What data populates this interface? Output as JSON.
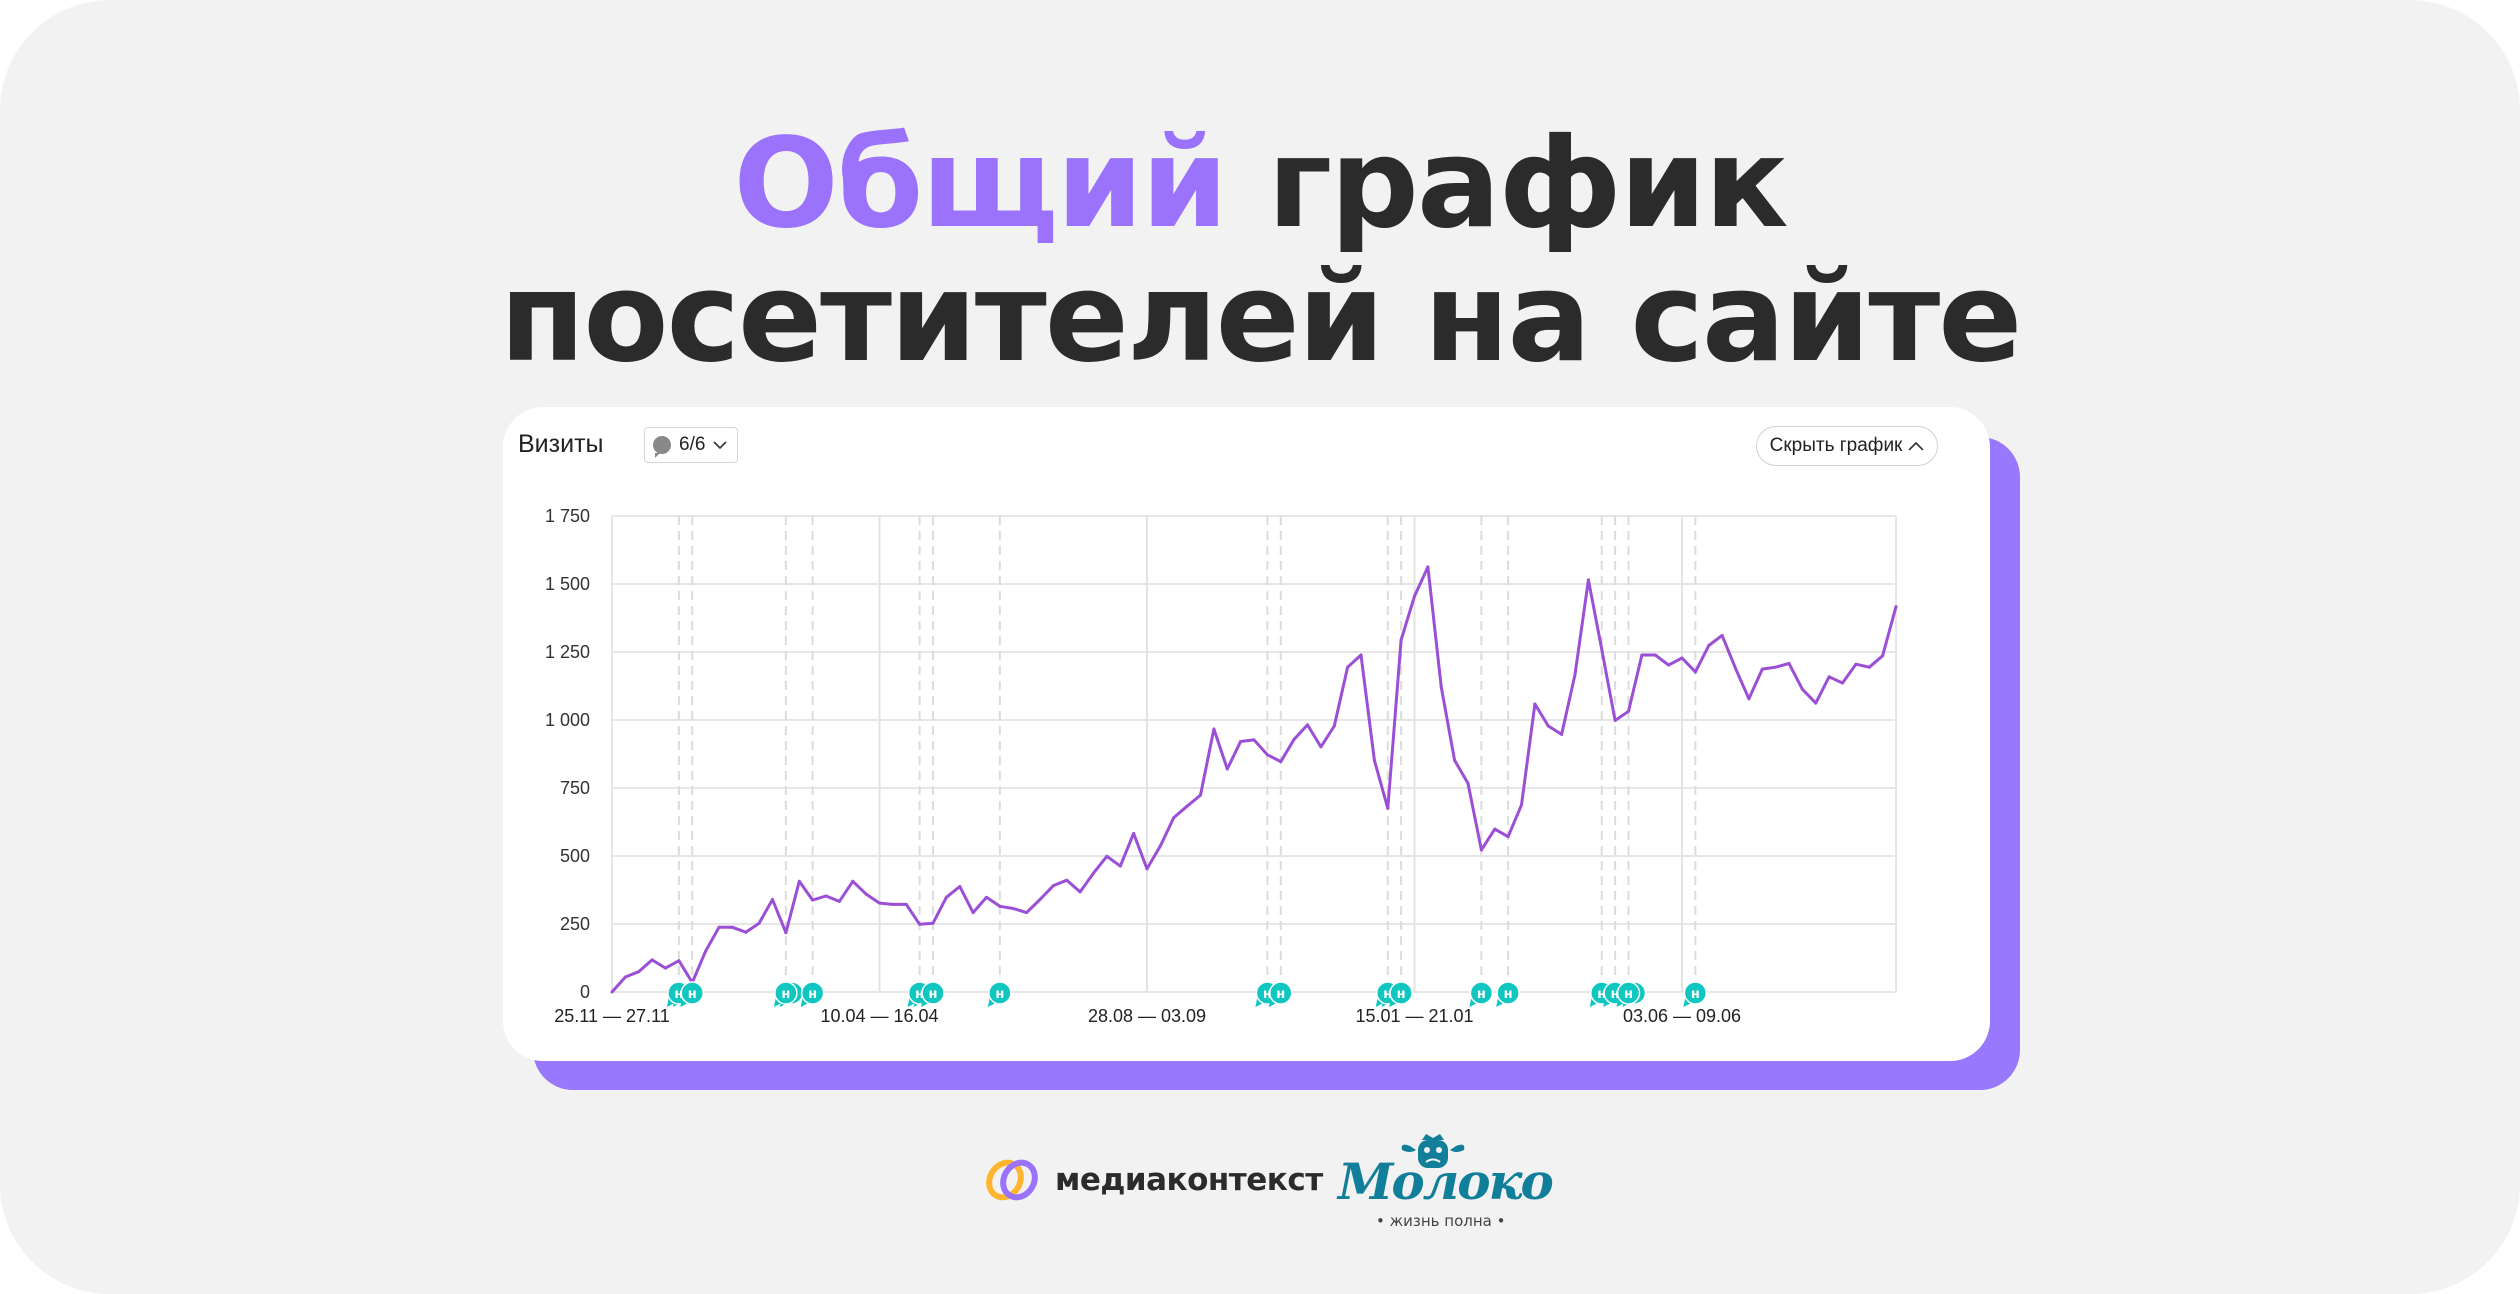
{
  "title": {
    "accent": "Общий",
    "line1_rest": " график",
    "line2": "посетителей на сайте"
  },
  "colors": {
    "accent": "#9a72fb",
    "line": "#9b4fd6",
    "annotation": "#0fc6c0",
    "shadow_card": "#9a78fd"
  },
  "widget": {
    "metric_label": "Визиты",
    "annotations_filter": "6/6",
    "annotations_icon": "speech-bubble-icon",
    "hide_button": "Скрыть график",
    "hide_icon": "chevron-up-icon"
  },
  "chart_data": {
    "type": "line",
    "title": "",
    "xlabel": "",
    "ylabel": "",
    "ylim": [
      0,
      1750
    ],
    "yticks": [
      "0",
      "250",
      "500",
      "750",
      "1 000",
      "1 250",
      "1 500",
      "1 750"
    ],
    "ytick_values": [
      0,
      250,
      500,
      750,
      1000,
      1250,
      1500,
      1750
    ],
    "xtick_labels": [
      {
        "index": 0,
        "label": "25.11 — 27.11"
      },
      {
        "index": 20,
        "label": "10.04 — 16.04"
      },
      {
        "index": 40,
        "label": "28.08 — 03.09"
      },
      {
        "index": 60,
        "label": "15.01 — 21.01"
      },
      {
        "index": 80,
        "label": "03.06 — 09.06"
      }
    ],
    "grid": true,
    "values": [
      0,
      55,
      75,
      118,
      88,
      115,
      35,
      150,
      238,
      238,
      220,
      253,
      340,
      218,
      407,
      338,
      353,
      333,
      407,
      360,
      327,
      322,
      322,
      249,
      253,
      348,
      388,
      292,
      348,
      315,
      307,
      292,
      340,
      391,
      411,
      368,
      437,
      499,
      463,
      583,
      453,
      537,
      641,
      683,
      724,
      967,
      820,
      921,
      927,
      872,
      847,
      929,
      982,
      901,
      978,
      1194,
      1239,
      852,
      675,
      1294,
      1455,
      1563,
      1120,
      852,
      767,
      522,
      599,
      571,
      688,
      1059,
      978,
      947,
      1167,
      1515,
      1259,
      998,
      1032,
      1239,
      1239,
      1202,
      1228,
      1177,
      1274,
      1311,
      1190,
      1078,
      1187,
      1194,
      1208,
      1113,
      1062,
      1159,
      1136,
      1205,
      1194,
      1236,
      1417
    ],
    "annotations": {
      "marker_text": "н",
      "items": [
        {
          "index": 5,
          "count": 2
        },
        {
          "index": 6,
          "count": 1
        },
        {
          "index": 13,
          "count": 2
        },
        {
          "index": 15,
          "count": 1
        },
        {
          "index": 23,
          "count": 2
        },
        {
          "index": 24,
          "count": 1
        },
        {
          "index": 29,
          "count": 1
        },
        {
          "index": 49,
          "count": 1
        },
        {
          "index": 50,
          "count": 1
        },
        {
          "index": 58,
          "count": 2
        },
        {
          "index": 59,
          "count": 1
        },
        {
          "index": 65,
          "count": 1
        },
        {
          "index": 67,
          "count": 1
        },
        {
          "index": 74,
          "count": 1
        },
        {
          "index": 75,
          "count": 1
        },
        {
          "index": 76,
          "count": 2
        },
        {
          "index": 81,
          "count": 1
        }
      ]
    }
  },
  "footer": {
    "logo1_name": "медиаконтекст",
    "logo2_name": "Молоко",
    "logo2_tagline": "• жизнь полна •"
  }
}
